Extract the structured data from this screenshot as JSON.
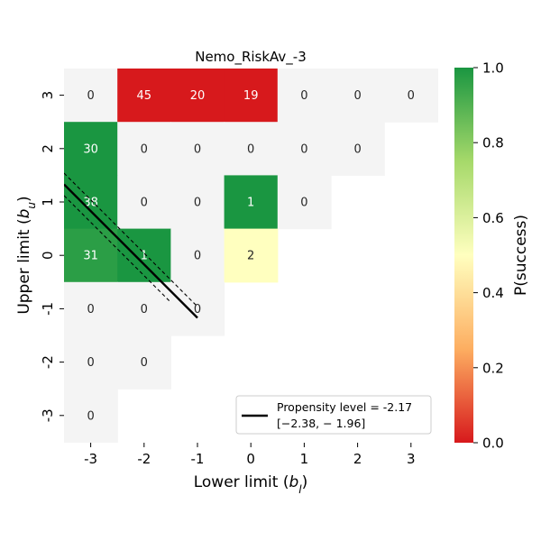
{
  "chart_data": {
    "type": "heatmap",
    "title": "Nemo_RiskAv_-3",
    "xlabel": "Lower limit ($b_l$)",
    "ylabel": "Upper limit ($b_u$)",
    "x_ticks": [
      "-3",
      "-2",
      "-1",
      "0",
      "1",
      "2",
      "3"
    ],
    "y_ticks": [
      "3",
      "2",
      "1",
      "0",
      "-1",
      "-2",
      "-3"
    ],
    "x_values": [
      -3,
      -2,
      -1,
      0,
      1,
      2,
      3
    ],
    "y_values": [
      3,
      2,
      1,
      0,
      -1,
      -2,
      -3
    ],
    "counts": [
      [
        "0",
        "45",
        "20",
        "19",
        "0",
        "0",
        "0"
      ],
      [
        "30",
        "0",
        "0",
        "0",
        "0",
        "0",
        null
      ],
      [
        "38",
        "0",
        "0",
        "1",
        "0",
        null,
        null
      ],
      [
        "31",
        "1",
        "0",
        "2",
        null,
        null,
        null
      ],
      [
        "0",
        "0",
        "0",
        null,
        null,
        null,
        null
      ],
      [
        "0",
        "0",
        null,
        null,
        null,
        null,
        null
      ],
      [
        "0",
        null,
        null,
        null,
        null,
        null,
        null
      ]
    ],
    "p_success": [
      [
        null,
        0.0,
        0.0,
        0.0,
        null,
        null,
        null
      ],
      [
        1.0,
        null,
        null,
        null,
        null,
        null,
        null
      ],
      [
        1.0,
        null,
        null,
        1.0,
        null,
        null,
        null
      ],
      [
        0.97,
        1.0,
        null,
        0.5,
        null,
        null,
        null
      ],
      [
        null,
        null,
        null,
        null,
        null,
        null,
        null
      ],
      [
        null,
        null,
        null,
        null,
        null,
        null,
        null
      ],
      [
        null,
        null,
        null,
        null,
        null,
        null,
        null
      ]
    ],
    "colorbar": {
      "label": "P(success)",
      "ticks": [
        "0.0",
        "0.2",
        "0.4",
        "0.6",
        "0.8",
        "1.0"
      ],
      "tick_values": [
        0.0,
        0.2,
        0.4,
        0.6,
        0.8,
        1.0
      ],
      "range": [
        0.0,
        1.0
      ],
      "colors": [
        "#d7191c",
        "#fdae61",
        "#ffffbf",
        "#a6d96a",
        "#1a9641"
      ]
    },
    "empty_cell_color": "#f4f4f4",
    "propensity": {
      "legend_line1": "Propensity level = -2.17",
      "legend_line2": "[−2.38, − 1.96]",
      "value": -2.17,
      "ci": [
        -2.38,
        -1.96
      ],
      "legend_position": "lower right"
    }
  }
}
